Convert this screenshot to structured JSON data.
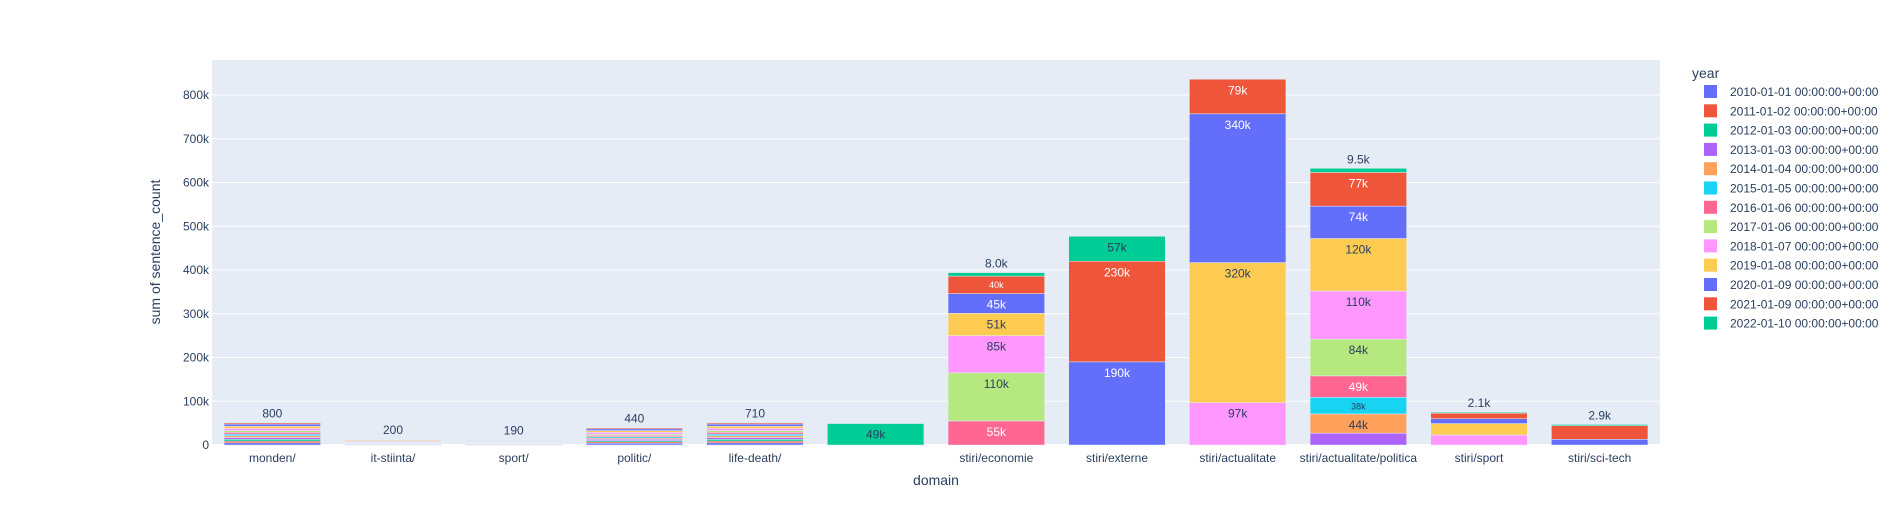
{
  "chart_data": {
    "type": "bar",
    "barmode": "stack",
    "xlabel": "domain",
    "ylabel": "sum of sentence_count",
    "ylim": [
      0,
      880000
    ],
    "grid": true,
    "legend_placement": "right",
    "legend_title": "year",
    "categories": [
      "monden/",
      "it-stiinta/",
      "sport/",
      "politic/",
      "life-death/",
      "",
      "stiri/economie",
      "stiri/externe",
      "stiri/actualitate",
      "stiri/actualitate/politica",
      "stiri/sport",
      "stiri/sci-tech"
    ],
    "y_ticks": [
      "0",
      "100k",
      "200k",
      "300k",
      "400k",
      "500k",
      "600k",
      "700k",
      "800k"
    ],
    "y_tick_values": [
      0,
      100000,
      200000,
      300000,
      400000,
      500000,
      600000,
      700000,
      800000
    ],
    "colors": [
      "#636efa",
      "#EF553B",
      "#00cc96",
      "#ab63fa",
      "#FFA15A",
      "#19d3f3",
      "#FF6692",
      "#B6E880",
      "#FF97FF",
      "#FECB52",
      "#636efa",
      "#EF553B",
      "#00cc96"
    ],
    "series": [
      {
        "name": "2010-01-01 00:00:00+00:00",
        "values": [
          5000,
          1000,
          1000,
          4000,
          5000,
          0,
          0,
          0,
          0,
          0,
          0,
          0
        ],
        "labels": [
          "",
          "",
          "",
          "",
          "",
          "",
          "",
          "",
          "",
          "",
          "",
          ""
        ]
      },
      {
        "name": "2011-01-02 00:00:00+00:00",
        "values": [
          4000,
          1000,
          1000,
          3000,
          4000,
          0,
          0,
          0,
          0,
          0,
          0,
          0
        ],
        "labels": [
          "",
          "",
          "",
          "",
          "",
          "",
          "",
          "",
          "",
          "",
          "",
          ""
        ]
      },
      {
        "name": "2012-01-03 00:00:00+00:00",
        "values": [
          4000,
          1000,
          1000,
          3000,
          4000,
          0,
          0,
          0,
          0,
          0,
          0,
          0
        ],
        "labels": [
          "",
          "",
          "",
          "",
          "",
          "",
          "",
          "",
          "",
          "",
          "",
          ""
        ]
      },
      {
        "name": "2013-01-03 00:00:00+00:00",
        "values": [
          4000,
          1000,
          1000,
          3000,
          4000,
          0,
          0,
          0,
          0,
          27000,
          0,
          0
        ],
        "labels": [
          "",
          "",
          "",
          "",
          "",
          "",
          "",
          "",
          "",
          "",
          "",
          ""
        ]
      },
      {
        "name": "2014-01-04 00:00:00+00:00",
        "values": [
          4000,
          1000,
          1000,
          3000,
          4000,
          0,
          0,
          0,
          0,
          44000,
          0,
          0
        ],
        "labels": [
          "",
          "",
          "",
          "",
          "",
          "",
          "",
          "",
          "",
          "44k",
          "",
          ""
        ]
      },
      {
        "name": "2015-01-05 00:00:00+00:00",
        "values": [
          4000,
          1000,
          1000,
          3000,
          4000,
          0,
          0,
          0,
          0,
          38000,
          0,
          0
        ],
        "labels": [
          "",
          "",
          "",
          "",
          "",
          "",
          "",
          "",
          "",
          "38k",
          "",
          ""
        ]
      },
      {
        "name": "2016-01-06 00:00:00+00:00",
        "values": [
          4000,
          1000,
          1000,
          3000,
          4000,
          0,
          55000,
          0,
          0,
          49000,
          0,
          0
        ],
        "labels": [
          "",
          "",
          "",
          "",
          "",
          "",
          "55k",
          "",
          "",
          "49k",
          "",
          ""
        ]
      },
      {
        "name": "2017-01-06 00:00:00+00:00",
        "values": [
          4000,
          1000,
          1000,
          3000,
          4000,
          0,
          110000,
          0,
          0,
          84000,
          0,
          0
        ],
        "labels": [
          "",
          "",
          "",
          "",
          "",
          "",
          "110k",
          "",
          "",
          "84k",
          "",
          ""
        ]
      },
      {
        "name": "2018-01-07 00:00:00+00:00",
        "values": [
          5000,
          2000,
          1000,
          4000,
          5000,
          0,
          85000,
          0,
          97000,
          110000,
          23000,
          0
        ],
        "labels": [
          "",
          "",
          "",
          "",
          "",
          "",
          "85k",
          "",
          "97k",
          "110k",
          "",
          ""
        ]
      },
      {
        "name": "2019-01-08 00:00:00+00:00",
        "values": [
          5000,
          2000,
          1000,
          4000,
          5000,
          0,
          51000,
          0,
          320000,
          120000,
          26000,
          0
        ],
        "labels": [
          "",
          "",
          "",
          "",
          "",
          "",
          "51k",
          "",
          "320k",
          "120k",
          "",
          ""
        ]
      },
      {
        "name": "2020-01-09 00:00:00+00:00",
        "values": [
          5000,
          1000,
          1000,
          4000,
          5000,
          0,
          45000,
          190000,
          340000,
          74000,
          11000,
          13000
        ],
        "labels": [
          "",
          "",
          "",
          "",
          "",
          "",
          "45k",
          "190k",
          "340k",
          "74k",
          "",
          ""
        ]
      },
      {
        "name": "2021-01-09 00:00:00+00:00",
        "values": [
          3000,
          1000,
          1000,
          3000,
          3000,
          0,
          40000,
          230000,
          79000,
          77000,
          13000,
          31000
        ],
        "labels": [
          "",
          "",
          "",
          "",
          "",
          "",
          "40k",
          "230k",
          "79k",
          "77k",
          "",
          ""
        ]
      },
      {
        "name": "2022-01-10 00:00:00+00:00",
        "values": [
          800,
          200,
          190,
          440,
          710,
          49000,
          8000,
          57000,
          0,
          9500,
          2100,
          2900
        ],
        "labels": [
          "800",
          "200",
          "190",
          "440",
          "710",
          "49k",
          "8.0k",
          "57k",
          "",
          "9.5k",
          "2.1k",
          "2.9k"
        ]
      }
    ]
  }
}
